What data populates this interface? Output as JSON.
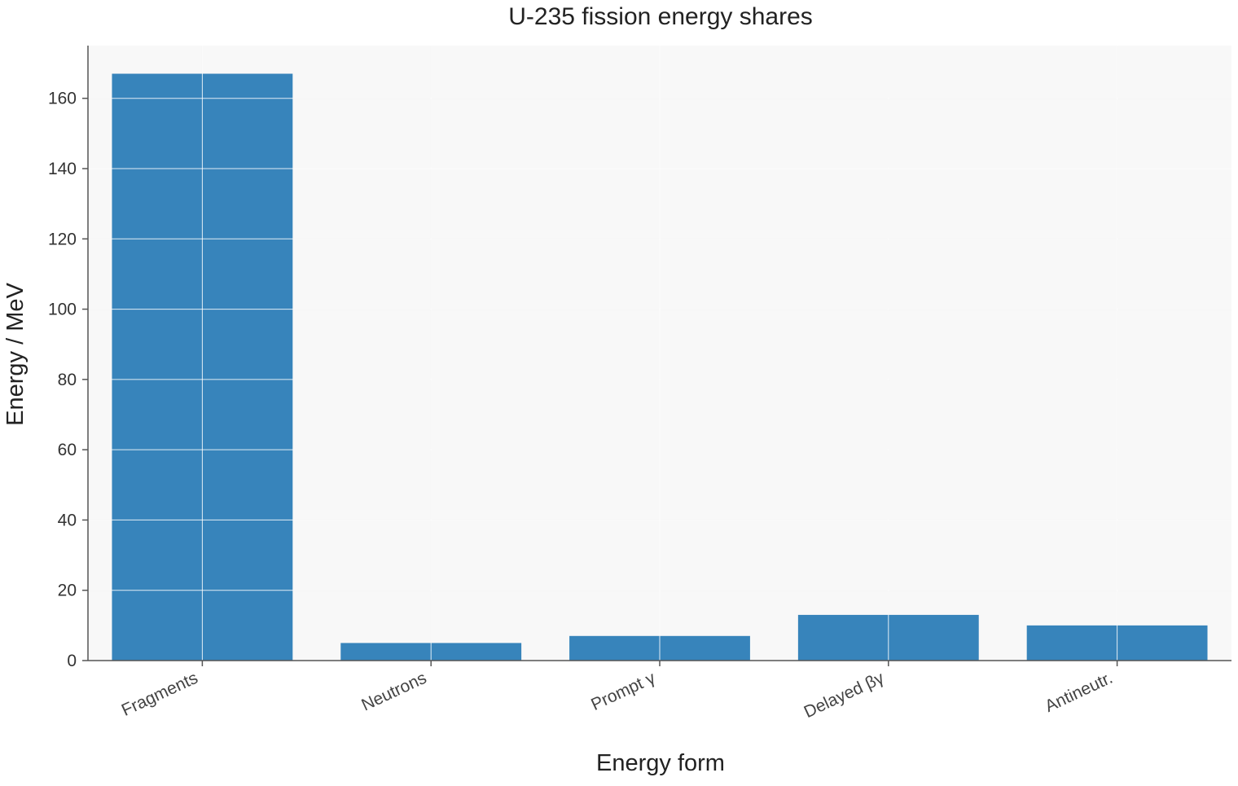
{
  "chart_data": {
    "type": "bar",
    "title": "U-235 fission energy shares",
    "xlabel": "Energy form",
    "ylabel": "Energy / MeV",
    "categories": [
      "Fragments",
      "Neutrons",
      "Prompt γ",
      "Delayed βγ",
      "Antineutr."
    ],
    "values": [
      167,
      5,
      7,
      13,
      10
    ],
    "ylim": [
      0,
      175
    ],
    "yticks": [
      0,
      20,
      40,
      60,
      80,
      100,
      120,
      140,
      160
    ],
    "grid": true,
    "legend": "none",
    "colors": {
      "bar": "#3784bb",
      "plot_background": "#f8f8f8",
      "grid": "#e4e4e4",
      "axis": "#555555"
    }
  }
}
